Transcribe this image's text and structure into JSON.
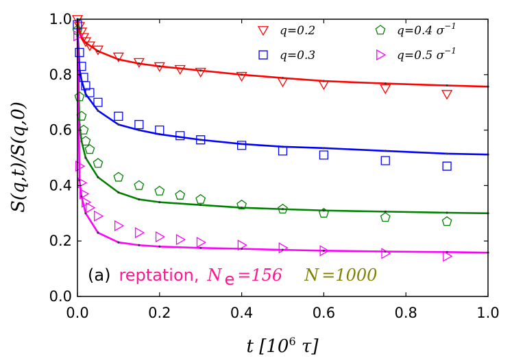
{
  "chart_data": {
    "type": "line",
    "title": "",
    "xlabel": "t [10^6 τ]",
    "ylabel": "S(q,t)/S(q,0)",
    "xlim": [
      0.0,
      1.0
    ],
    "ylim": [
      0.0,
      1.0
    ],
    "x_ticks": [
      "0.0",
      "0.2",
      "0.4",
      "0.6",
      "0.8",
      "1.0"
    ],
    "y_ticks": [
      "0.0",
      "0.2",
      "0.4",
      "0.6",
      "0.8",
      "1.0"
    ],
    "legend_placement": "top-right",
    "annotation": {
      "panel": "(a)",
      "model": "reptation,",
      "ne_label": "N",
      "ne_sub": "e",
      "ne_value": "=156",
      "n_label": "N",
      "n_value": "=1000"
    },
    "series": [
      {
        "name": "q=0.2",
        "color": "#ff0000",
        "marker": "triangle-down",
        "legend_text": "q=0.2",
        "points": [
          [
            0.0,
            1.0
          ],
          [
            0.005,
            0.975
          ],
          [
            0.01,
            0.955
          ],
          [
            0.015,
            0.935
          ],
          [
            0.02,
            0.92
          ],
          [
            0.03,
            0.905
          ],
          [
            0.05,
            0.89
          ],
          [
            0.1,
            0.865
          ],
          [
            0.15,
            0.845
          ],
          [
            0.2,
            0.83
          ],
          [
            0.25,
            0.82
          ],
          [
            0.3,
            0.81
          ],
          [
            0.4,
            0.795
          ],
          [
            0.5,
            0.775
          ],
          [
            0.6,
            0.765
          ],
          [
            0.75,
            0.75
          ],
          [
            0.9,
            0.73
          ]
        ],
        "fit": [
          [
            0.0,
            1.0
          ],
          [
            0.005,
            0.96
          ],
          [
            0.01,
            0.935
          ],
          [
            0.02,
            0.915
          ],
          [
            0.05,
            0.885
          ],
          [
            0.1,
            0.855
          ],
          [
            0.15,
            0.84
          ],
          [
            0.2,
            0.83
          ],
          [
            0.3,
            0.815
          ],
          [
            0.4,
            0.8
          ],
          [
            0.5,
            0.788
          ],
          [
            0.6,
            0.777
          ],
          [
            0.75,
            0.768
          ],
          [
            0.9,
            0.761
          ],
          [
            1.0,
            0.757
          ]
        ]
      },
      {
        "name": "q=0.3",
        "color": "#0000ff",
        "marker": "square",
        "legend_text": "q=0.3",
        "points": [
          [
            0.0,
            0.98
          ],
          [
            0.005,
            0.88
          ],
          [
            0.01,
            0.83
          ],
          [
            0.015,
            0.79
          ],
          [
            0.02,
            0.76
          ],
          [
            0.03,
            0.735
          ],
          [
            0.05,
            0.7
          ],
          [
            0.1,
            0.65
          ],
          [
            0.15,
            0.62
          ],
          [
            0.2,
            0.6
          ],
          [
            0.25,
            0.58
          ],
          [
            0.3,
            0.565
          ],
          [
            0.4,
            0.545
          ],
          [
            0.5,
            0.525
          ],
          [
            0.6,
            0.51
          ],
          [
            0.75,
            0.49
          ],
          [
            0.9,
            0.47
          ]
        ],
        "fit": [
          [
            0.0,
            0.98
          ],
          [
            0.005,
            0.82
          ],
          [
            0.01,
            0.78
          ],
          [
            0.02,
            0.73
          ],
          [
            0.05,
            0.67
          ],
          [
            0.1,
            0.62
          ],
          [
            0.15,
            0.6
          ],
          [
            0.2,
            0.585
          ],
          [
            0.3,
            0.565
          ],
          [
            0.4,
            0.55
          ],
          [
            0.5,
            0.54
          ],
          [
            0.6,
            0.535
          ],
          [
            0.75,
            0.525
          ],
          [
            0.9,
            0.515
          ],
          [
            1.0,
            0.512
          ]
        ]
      },
      {
        "name": "q=0.4 σ^-1",
        "color": "#008000",
        "marker": "pentagon",
        "legend_text": "q=0.4 σ",
        "legend_sup": "−1",
        "points": [
          [
            0.0,
            0.96
          ],
          [
            0.005,
            0.72
          ],
          [
            0.01,
            0.65
          ],
          [
            0.015,
            0.6
          ],
          [
            0.02,
            0.56
          ],
          [
            0.03,
            0.53
          ],
          [
            0.05,
            0.48
          ],
          [
            0.1,
            0.43
          ],
          [
            0.15,
            0.4
          ],
          [
            0.2,
            0.38
          ],
          [
            0.25,
            0.365
          ],
          [
            0.3,
            0.35
          ],
          [
            0.4,
            0.33
          ],
          [
            0.5,
            0.315
          ],
          [
            0.6,
            0.3
          ],
          [
            0.75,
            0.285
          ],
          [
            0.9,
            0.27
          ]
        ],
        "fit": [
          [
            0.0,
            0.96
          ],
          [
            0.005,
            0.62
          ],
          [
            0.01,
            0.56
          ],
          [
            0.02,
            0.5
          ],
          [
            0.05,
            0.43
          ],
          [
            0.1,
            0.375
          ],
          [
            0.15,
            0.35
          ],
          [
            0.2,
            0.34
          ],
          [
            0.3,
            0.33
          ],
          [
            0.4,
            0.32
          ],
          [
            0.5,
            0.315
          ],
          [
            0.6,
            0.31
          ],
          [
            0.75,
            0.306
          ],
          [
            0.9,
            0.302
          ],
          [
            1.0,
            0.3
          ]
        ]
      },
      {
        "name": "q=0.5 σ^-1",
        "color": "#ff00ff",
        "marker": "triangle-right",
        "legend_text": "q=0.5 σ",
        "legend_sup": "−1",
        "points": [
          [
            0.0,
            0.94
          ],
          [
            0.005,
            0.47
          ],
          [
            0.01,
            0.41
          ],
          [
            0.015,
            0.37
          ],
          [
            0.02,
            0.34
          ],
          [
            0.03,
            0.32
          ],
          [
            0.05,
            0.29
          ],
          [
            0.1,
            0.255
          ],
          [
            0.15,
            0.23
          ],
          [
            0.2,
            0.215
          ],
          [
            0.25,
            0.205
          ],
          [
            0.3,
            0.195
          ],
          [
            0.4,
            0.185
          ],
          [
            0.5,
            0.175
          ],
          [
            0.6,
            0.165
          ],
          [
            0.75,
            0.155
          ],
          [
            0.9,
            0.145
          ]
        ],
        "fit": [
          [
            0.0,
            0.94
          ],
          [
            0.005,
            0.42
          ],
          [
            0.01,
            0.36
          ],
          [
            0.02,
            0.3
          ],
          [
            0.05,
            0.23
          ],
          [
            0.1,
            0.195
          ],
          [
            0.15,
            0.185
          ],
          [
            0.2,
            0.18
          ],
          [
            0.3,
            0.175
          ],
          [
            0.4,
            0.172
          ],
          [
            0.5,
            0.168
          ],
          [
            0.6,
            0.165
          ],
          [
            0.75,
            0.162
          ],
          [
            0.9,
            0.16
          ],
          [
            1.0,
            0.158
          ]
        ]
      }
    ]
  }
}
